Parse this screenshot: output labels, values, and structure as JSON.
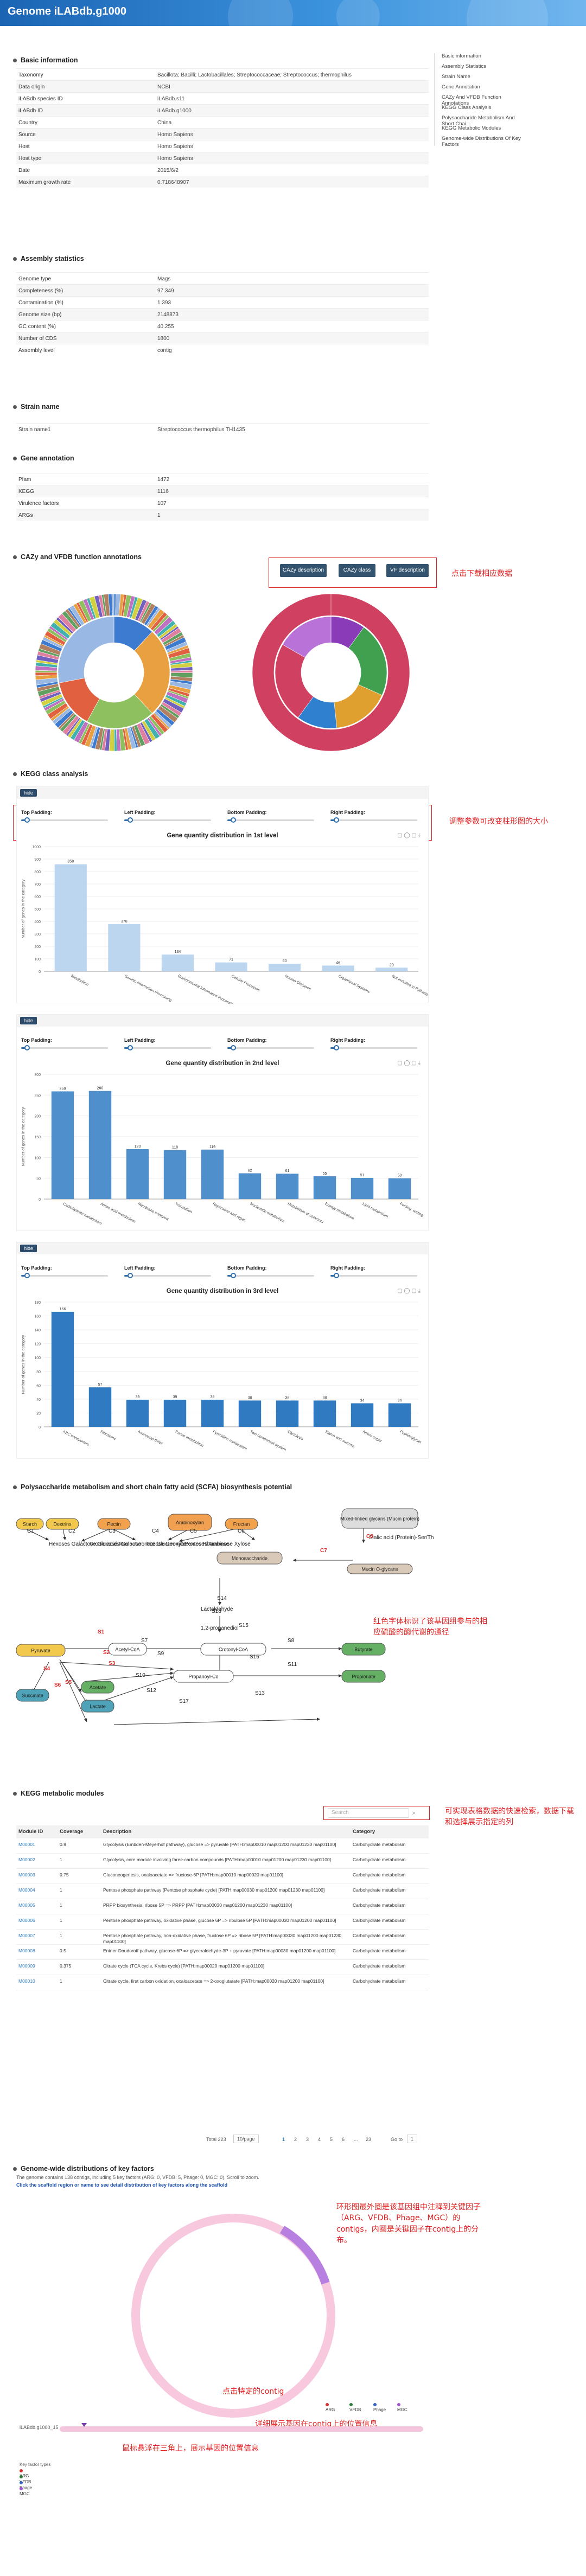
{
  "app": {
    "title": "Genome iLABdb.g1000"
  },
  "sections": {
    "basic": "Basic information",
    "assembly": "Assembly statistics",
    "strain": "Strain name",
    "gene": "Gene annotation",
    "cazy": "CAZy and VFDB function annotations",
    "kegg": "KEGG class analysis",
    "scfa": "Polysaccharide metabolism and short chain fatty acid (SCFA) biosynthesis potential",
    "modules": "KEGG metabolic modules",
    "keyfactors": "Genome-wide distributions of key factors"
  },
  "basic_rows": [
    {
      "k": "Taxonomy",
      "v": "Bacillota; Bacilli; Lactobacillales; Streptococcaceae; Streptococcus; thermophilus"
    },
    {
      "k": "Data origin",
      "v": "NCBI"
    },
    {
      "k": "iLABdb species ID",
      "v": "iLABdb.s11"
    },
    {
      "k": "iLABdb ID",
      "v": "iLABdb.g1000"
    },
    {
      "k": "Country",
      "v": "China"
    },
    {
      "k": "Source",
      "v": "Homo Sapiens"
    },
    {
      "k": "Host",
      "v": "Homo Sapiens"
    },
    {
      "k": "Host type",
      "v": "Homo Sapiens"
    },
    {
      "k": "Date",
      "v": "2015/6/2"
    },
    {
      "k": "Maximum growth rate",
      "v": "0.718648907"
    }
  ],
  "assembly_rows": [
    {
      "k": "Genome type",
      "v": "Mags"
    },
    {
      "k": "Completeness (%)",
      "v": "97.349"
    },
    {
      "k": "Contamination (%)",
      "v": "1.393"
    },
    {
      "k": "Genome size (bp)",
      "v": "2148873"
    },
    {
      "k": "GC content (%)",
      "v": "40.255"
    },
    {
      "k": "Number of CDS",
      "v": "1800"
    },
    {
      "k": "Assembly level",
      "v": "contig"
    }
  ],
  "strain_rows": [
    {
      "k": "Strain name1",
      "v": "Streptococcus thermophilus TH1435"
    }
  ],
  "gene_rows": [
    {
      "k": "Pfam",
      "v": "1472"
    },
    {
      "k": "KEGG",
      "v": "1116"
    },
    {
      "k": "Virulence factors",
      "v": "107"
    },
    {
      "k": "ARGs",
      "v": "1"
    }
  ],
  "toc": [
    "Basic information",
    "Assembly Statistics",
    "Strain Name",
    "Gene Annotation",
    "CAZy And VFDB Function Annotations",
    "KEGG Class Analysis",
    "Polysaccharide Metabolism And Short Chai...",
    "KEGG Metabolic Modules",
    "Genome-wide Distributions Of Key Factors"
  ],
  "cazy_buttons": {
    "a": "CAZy description",
    "b": "CAZy class",
    "c": "VF description"
  },
  "notes": {
    "n1": "点击下载相应数据",
    "n2": "调整参数可改变柱形图的大小",
    "n3": "红色字体标识了该基因组参与的相应硫酸的酶代谢的通径",
    "n4": "可实现表格数据的快速检索，数据下载和选择展示指定的列",
    "n5": "环形图最外圈是该基因组中注释到关键因子（ARG、VFDB、Phage、MGC）的contigs，内圈是关键因子在contig上的分布。",
    "n6": "点击特定的contig",
    "n7": "详细展示基因在contig上的位置信息",
    "n8": "鼠标悬浮在三角上，展示基因的位置信息"
  },
  "paddings": {
    "top": "Top Padding:",
    "left": "Left Padding:",
    "bottom": "Bottom Padding:",
    "right": "Right Padding:",
    "badge": "hide"
  },
  "chart_data": [
    {
      "type": "bar",
      "title": "Gene quantity distribution in 1st level",
      "ylabel": "Number of genes in the category",
      "ylim": [
        0,
        1000
      ],
      "yticks": [
        "0",
        "100",
        "200",
        "300",
        "400",
        "500",
        "600",
        "700",
        "800",
        "900",
        "1000"
      ],
      "categories": [
        "Metabolism",
        "Genetic Information Processing",
        "Environmental Information Processing",
        "Cellular Processes",
        "Human Diseases",
        "Organismal Systems",
        "Not Included in Pathway"
      ],
      "values": [
        858,
        378,
        134,
        71,
        60,
        46,
        29
      ],
      "color": "#bcd6ef"
    },
    {
      "type": "bar",
      "title": "Gene quantity distribution in 2nd level",
      "ylabel": "Number of genes in the category",
      "ylim": [
        0,
        300
      ],
      "yticks": [
        "0",
        "50",
        "100",
        "150",
        "200",
        "250",
        "300"
      ],
      "categories": [
        "Carbohydrate metabolism",
        "Amino acid metabolism",
        "Membrane transport",
        "Translation",
        "Replication and repair",
        "Nucleotide metabolism",
        "Metabolism of cofactors",
        "Energy metabolism",
        "Lipid metabolism",
        "Folding, sorting"
      ],
      "values": [
        259,
        260,
        120,
        118,
        119,
        62,
        61,
        55,
        51,
        50
      ],
      "color": "#4f8fcb"
    },
    {
      "type": "bar",
      "title": "Gene quantity distribution in 3rd level",
      "ylabel": "Number of genes in the category",
      "ylim": [
        0,
        180
      ],
      "yticks": [
        "0",
        "20",
        "40",
        "60",
        "80",
        "100",
        "120",
        "140",
        "160",
        "180"
      ],
      "categories": [
        "ABC transporters",
        "Ribosome",
        "Aminoacyl-tRNA",
        "Purine metabolism",
        "Pyrimidine metabolism",
        "Two-component system",
        "Glycolysis",
        "Starch and sucrose",
        "Amino sugar",
        "Peptidoglycan"
      ],
      "values": [
        166,
        57,
        39,
        39,
        39,
        38,
        38,
        38,
        34,
        34
      ],
      "color": "#2f7ac0"
    }
  ],
  "pathway": {
    "starch": "Starch",
    "dextrins": "Dextrins",
    "pectin": "Pectin",
    "xylan": "Xylan",
    "fructan": "Fructan",
    "arabinoxylan": "Arabinoxylan",
    "mucin": "Mixed-linked glycans (Mucin protein)",
    "hexoses": "Hexoses Galactose Glucose Mannose",
    "uronic": "Uronic acids Galacturonate Glucuronate",
    "fucose": "Fucose Deoxyhexoses Rhamnose",
    "pentoses": "Pentoses Arabinose Xylose",
    "mono": "Monosaccharide",
    "sialic": "Sialic acid (Protein)-Ser/Thr",
    "mucin_glycans": "Mucin O-glycans",
    "lactaldehyde": "Lactaldehyde",
    "propanediol": "1,2-propanediol",
    "pyruvate": "Pyruvate",
    "acetyl": "Acetyl-CoA",
    "crotonyl": "Crotonyl-CoA",
    "butyrate": "Butyrate",
    "acetate": "Acetate",
    "lactate": "Lactate",
    "succinate": "Succinate",
    "propanoyl": "Propanoyl-Co",
    "propionate": "Propionate",
    "labels": [
      "C1",
      "C2",
      "C3",
      "C4",
      "C5",
      "C6",
      "C7",
      "C8",
      "S1",
      "S2",
      "S3",
      "S4",
      "S5",
      "S6",
      "S7",
      "S8",
      "S9",
      "S10",
      "S11",
      "S12",
      "S13",
      "S14",
      "S15",
      "S16",
      "S17",
      "S18"
    ]
  },
  "table": {
    "search_placeholder": "Search",
    "headers": [
      "Module ID",
      "Coverage",
      "Description",
      "Category"
    ],
    "rows": [
      {
        "id": "M00001",
        "cov": "0.9",
        "desc": "Glycolysis (Embden-Meyerhof pathway), glucose => pyruvate [PATH:map00010 map01200 map01230 map01100]",
        "cat": "Carbohydrate metabolism"
      },
      {
        "id": "M00002",
        "cov": "1",
        "desc": "Glycolysis, core module involving three-carbon compounds [PATH:map00010 map01200 map01230 map01100]",
        "cat": "Carbohydrate metabolism"
      },
      {
        "id": "M00003",
        "cov": "0.75",
        "desc": "Gluconeogenesis, oxaloacetate => fructose-6P [PATH:map00010 map00020 map01100]",
        "cat": "Carbohydrate metabolism"
      },
      {
        "id": "M00004",
        "cov": "1",
        "desc": "Pentose phosphate pathway (Pentose phosphate cycle) [PATH:map00030 map01200 map01230 map01100]",
        "cat": "Carbohydrate metabolism"
      },
      {
        "id": "M00005",
        "cov": "1",
        "desc": "PRPP biosynthesis, ribose 5P => PRPP [PATH:map00030 map01200 map01230 map01100]",
        "cat": "Carbohydrate metabolism"
      },
      {
        "id": "M00006",
        "cov": "1",
        "desc": "Pentose phosphate pathway, oxidative phase, glucose 6P => ribulose 5P [PATH:map00030 map01200 map01100]",
        "cat": "Carbohydrate metabolism"
      },
      {
        "id": "M00007",
        "cov": "1",
        "desc": "Pentose phosphate pathway, non-oxidative phase, fructose 6P => ribose 5P [PATH:map00030 map01200 map01230 map01100]",
        "cat": "Carbohydrate metabolism"
      },
      {
        "id": "M00008",
        "cov": "0.5",
        "desc": "Entner-Doudoroff pathway, glucose-6P => glyceraldehyde-3P + pyruvate [PATH:map00030 map01200 map01100]",
        "cat": "Carbohydrate metabolism"
      },
      {
        "id": "M00009",
        "cov": "0.375",
        "desc": "Citrate cycle (TCA cycle, Krebs cycle) [PATH:map00020 map01200 map01100]",
        "cat": "Carbohydrate metabolism"
      },
      {
        "id": "M00010",
        "cov": "1",
        "desc": "Citrate cycle, first carbon oxidation, oxaloacetate => 2-oxoglutarate [PATH:map00020 map01200 map01100]",
        "cat": "Carbohydrate metabolism"
      }
    ],
    "footer": "Total 223",
    "per_page": "10/page",
    "pages": [
      "1",
      "2",
      "3",
      "4",
      "5",
      "6",
      "...",
      "23"
    ],
    "goto": "Go to",
    "goto_val": "1"
  },
  "key": {
    "desc": "The genome contains 138 contigs, including 5 key factors (ARG: 0, VFDB: 5, Phage: 0, MGC: 0). Scroll to zoom.",
    "count": "138",
    "link": "Click the scaffold region or name to see detail distribution of key factors along the scaffold",
    "contig_label": "iLABdb.g1000_15",
    "legend": [
      "ARG",
      "VFDB",
      "Phage",
      "MGC"
    ],
    "legend_title": "Key factor types",
    "legend_colors": [
      "#d03030",
      "#2b7a3a",
      "#3060c0",
      "#a050d0"
    ]
  }
}
